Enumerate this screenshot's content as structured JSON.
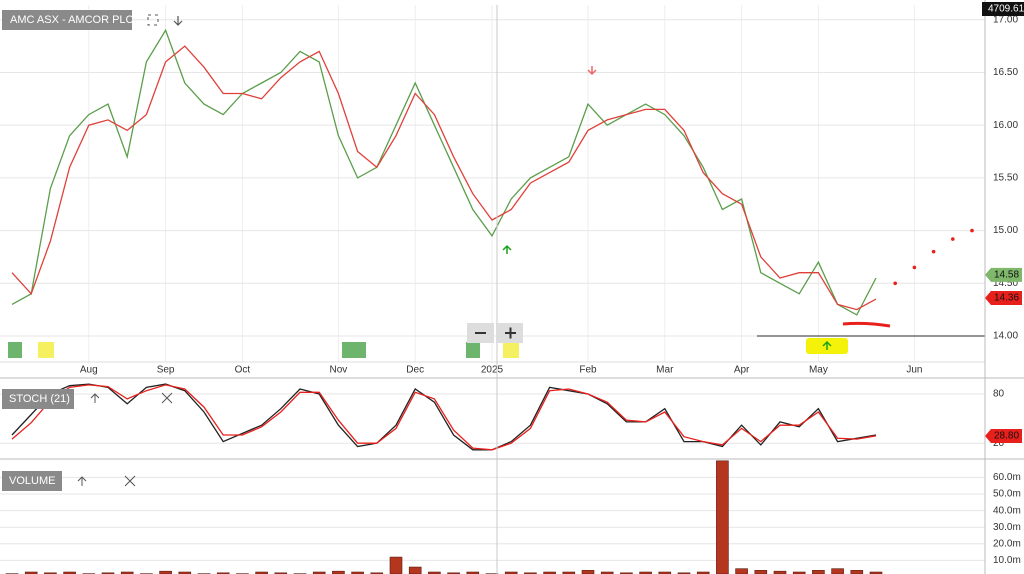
{
  "chart_data": [
    {
      "type": "line",
      "title": "AMC ASX - AMCOR PLC",
      "top_label": "4709.61",
      "categories": [
        null,
        null,
        null,
        null,
        "Aug",
        null,
        null,
        null,
        "Sep",
        null,
        null,
        null,
        "Oct",
        null,
        null,
        null,
        null,
        "Nov",
        null,
        null,
        null,
        "Dec",
        null,
        null,
        null,
        "2025",
        null,
        null,
        null,
        null,
        "Feb",
        null,
        null,
        null,
        "Mar",
        null,
        null,
        null,
        "Apr",
        null,
        null,
        null,
        "May",
        null,
        null,
        null,
        null,
        "Jun",
        null,
        null,
        null
      ],
      "series": [
        {
          "color": "#5a9e4b",
          "values": [
            14.3,
            14.4,
            15.4,
            15.9,
            16.1,
            16.2,
            15.7,
            16.6,
            16.9,
            16.4,
            16.2,
            16.1,
            16.3,
            16.4,
            16.5,
            16.7,
            16.6,
            15.9,
            15.5,
            15.6,
            16.0,
            16.4,
            16.0,
            15.6,
            15.2,
            14.95,
            15.3,
            15.5,
            15.6,
            15.7,
            16.2,
            16.0,
            16.1,
            16.2,
            16.1,
            15.9,
            15.6,
            15.2,
            15.3,
            14.6,
            14.5,
            14.4,
            14.7,
            14.3,
            14.2,
            14.55,
            null,
            null,
            null,
            null,
            null
          ]
        },
        {
          "color": "#e0403a",
          "values": [
            14.6,
            14.4,
            14.9,
            15.6,
            16.0,
            16.05,
            15.95,
            16.1,
            16.6,
            16.75,
            16.55,
            16.3,
            16.3,
            16.25,
            16.45,
            16.6,
            16.7,
            16.3,
            15.75,
            15.6,
            15.9,
            16.3,
            16.1,
            15.7,
            15.35,
            15.1,
            15.2,
            15.45,
            15.55,
            15.65,
            15.95,
            16.05,
            16.1,
            16.15,
            16.15,
            15.95,
            15.55,
            15.35,
            15.25,
            14.75,
            14.55,
            14.6,
            14.6,
            14.3,
            14.25,
            14.35,
            null,
            null,
            null,
            null,
            null
          ]
        },
        {
          "color": "#e8201c",
          "dotted": true,
          "values": [
            null,
            null,
            null,
            null,
            null,
            null,
            null,
            null,
            null,
            null,
            null,
            null,
            null,
            null,
            null,
            null,
            null,
            null,
            null,
            null,
            null,
            null,
            null,
            null,
            null,
            null,
            null,
            null,
            null,
            null,
            null,
            null,
            null,
            null,
            null,
            null,
            null,
            null,
            null,
            null,
            null,
            null,
            null,
            null,
            null,
            null,
            14.5,
            14.65,
            14.8,
            14.92,
            15.0
          ]
        }
      ],
      "last_labels": [
        {
          "value": 14.58,
          "label": "14.58",
          "color": "#7fb86a"
        },
        {
          "value": 14.36,
          "label": "14.36",
          "color": "#e8201c"
        }
      ],
      "support_line": 14,
      "ylim": [
        13.63,
        17.14
      ],
      "yticks": [
        {
          "value": 14,
          "label": "14.00"
        },
        {
          "value": 14.5,
          "label": "14.50"
        },
        {
          "value": 15,
          "label": "15.00"
        },
        {
          "value": 15.5,
          "label": "15.50"
        },
        {
          "value": 16,
          "label": "16.00"
        },
        {
          "value": 16.5,
          "label": "16.50"
        },
        {
          "value": 17,
          "label": "17.00"
        }
      ],
      "grid": true
    },
    {
      "type": "line",
      "title": "STOCH (21)",
      "series": [
        {
          "color": "#222222",
          "values": [
            30,
            55,
            80,
            90,
            92,
            88,
            68,
            88,
            92,
            84,
            58,
            22,
            32,
            42,
            62,
            86,
            80,
            42,
            16,
            20,
            42,
            86,
            70,
            30,
            12,
            12,
            22,
            42,
            88,
            84,
            80,
            68,
            46,
            46,
            62,
            22,
            22,
            16,
            42,
            18,
            46,
            40,
            62,
            22,
            26,
            30
          ]
        },
        {
          "color": "#e8201c",
          "values": [
            25,
            45,
            72,
            88,
            91,
            89,
            74,
            84,
            91,
            86,
            64,
            30,
            30,
            40,
            58,
            82,
            82,
            48,
            20,
            20,
            38,
            82,
            74,
            36,
            14,
            12,
            20,
            38,
            84,
            86,
            80,
            70,
            48,
            46,
            58,
            28,
            22,
            18,
            38,
            22,
            42,
            42,
            58,
            26,
            25,
            29
          ]
        }
      ],
      "last_labels": [
        {
          "value": 28.8,
          "label": "28.80",
          "color": "#e8201c"
        }
      ],
      "ylim": [
        2,
        97
      ],
      "yticks": [
        20,
        80
      ],
      "grid": true
    },
    {
      "type": "bar",
      "title": "VOLUME",
      "color": "#b5361f",
      "values": [
        2,
        3,
        2.5,
        3,
        2,
        2.5,
        3,
        2,
        3.5,
        3,
        2,
        2.5,
        2,
        3,
        2.5,
        2,
        3,
        3.5,
        3,
        2.5,
        12,
        6,
        3,
        2.5,
        3,
        2,
        3,
        2.5,
        3,
        3,
        4,
        3,
        2.5,
        3,
        3,
        2.5,
        3,
        70,
        5,
        4,
        3.5,
        3,
        4,
        5,
        4,
        3
      ],
      "ylim": [
        1.8,
        70.5
      ],
      "yticks": [
        {
          "value": 10,
          "label": "10.0m"
        },
        {
          "value": 20,
          "label": "20.0m"
        },
        {
          "value": 30,
          "label": "30.0m"
        },
        {
          "value": 40,
          "label": "40.0m"
        },
        {
          "value": 50,
          "label": "50.0m"
        },
        {
          "value": 60,
          "label": "60.0m"
        }
      ],
      "grid": true
    }
  ]
}
